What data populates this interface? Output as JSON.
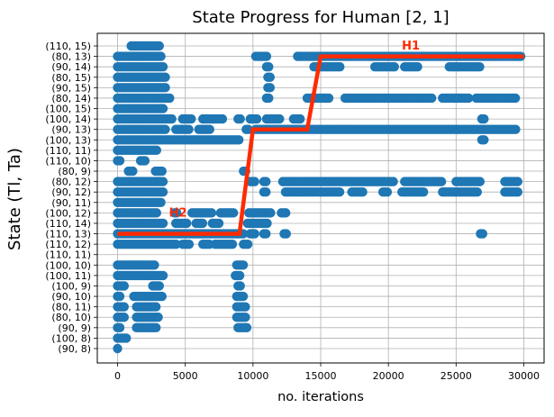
{
  "chart_data": {
    "type": "scatter",
    "title": "State Progress for Human [2, 1]",
    "xlabel": "no. iterations",
    "ylabel": "State (Tl, Ta)",
    "xlim": [
      -1500,
      31500
    ],
    "xticks": [
      0,
      5000,
      10000,
      15000,
      20000,
      25000,
      30000
    ],
    "grid": true,
    "categories": [
      "(90, 8)",
      "(100, 8)",
      "(90, 9)",
      "(80, 10)",
      "(80, 11)",
      "(90, 10)",
      "(100, 9)",
      "(100, 11)",
      "(100, 10)",
      "(110, 11)",
      "(110, 12)",
      "(110, 13)",
      "(110, 14)",
      "(100, 12)",
      "(90, 11)",
      "(90, 12)",
      "(80, 12)",
      "(80, 9)",
      "(110, 10)",
      "(110, 11)",
      "(100, 13)",
      "(90, 13)",
      "(100, 14)",
      "(100, 15)",
      "(80, 14)",
      "(90, 15)",
      "(80, 15)",
      "(90, 14)",
      "(80, 13)",
      "(110, 15)"
    ],
    "scatter_color": "#1f77b4",
    "scatter_segments": [
      {
        "state": "(110, 15)",
        "x": [
          [
            1000,
            3100
          ]
        ]
      },
      {
        "state": "(80, 13)",
        "x": [
          [
            0,
            3300
          ],
          [
            10200,
            11100
          ],
          [
            13300,
            29900
          ]
        ]
      },
      {
        "state": "(90, 14)",
        "x": [
          [
            0,
            3400
          ],
          [
            11000,
            11200
          ],
          [
            14500,
            16500
          ],
          [
            19000,
            20500
          ],
          [
            21200,
            22200
          ],
          [
            24500,
            26800
          ]
        ]
      },
      {
        "state": "(80, 15)",
        "x": [
          [
            0,
            3600
          ],
          [
            11100,
            11300
          ]
        ]
      },
      {
        "state": "(90, 15)",
        "x": [
          [
            0,
            3600
          ],
          [
            11100,
            11300
          ]
        ]
      },
      {
        "state": "(80, 14)",
        "x": [
          [
            0,
            3900
          ],
          [
            11000,
            11300
          ],
          [
            14000,
            15600
          ],
          [
            16800,
            23200
          ],
          [
            24000,
            26000
          ],
          [
            26500,
            29500
          ]
        ]
      },
      {
        "state": "(100, 15)",
        "x": [
          [
            0,
            3500
          ]
        ]
      },
      {
        "state": "(100, 14)",
        "x": [
          [
            0,
            4000
          ],
          [
            4800,
            5500
          ],
          [
            6300,
            7800
          ],
          [
            8900,
            9200
          ],
          [
            9800,
            10300
          ],
          [
            11000,
            12000
          ],
          [
            13000,
            13600
          ],
          [
            26900,
            27100
          ]
        ]
      },
      {
        "state": "(90, 13)",
        "x": [
          [
            0,
            3600
          ],
          [
            4300,
            5400
          ],
          [
            6000,
            6800
          ],
          [
            9500,
            9800
          ],
          [
            10200,
            29500
          ]
        ]
      },
      {
        "state": "(100, 13)",
        "x": [
          [
            0,
            9100
          ],
          [
            26900,
            27100
          ]
        ]
      },
      {
        "state": "(110, 11)",
        "x": [
          [
            0,
            3000
          ]
        ]
      },
      {
        "state": "(110, 10)",
        "x": [
          [
            0,
            300
          ],
          [
            1700,
            2100
          ]
        ]
      },
      {
        "state": "(80, 9)",
        "x": [
          [
            800,
            1200
          ],
          [
            2800,
            3300
          ],
          [
            9300,
            9600
          ]
        ]
      },
      {
        "state": "(80, 12)",
        "x": [
          [
            0,
            3400
          ],
          [
            9800,
            10200
          ],
          [
            10800,
            11100
          ],
          [
            12200,
            20500
          ],
          [
            21200,
            24000
          ],
          [
            25000,
            26800
          ],
          [
            28600,
            29600
          ]
        ]
      },
      {
        "state": "(90, 12)",
        "x": [
          [
            0,
            3400
          ],
          [
            10800,
            11100
          ],
          [
            12400,
            16400
          ],
          [
            17300,
            18100
          ],
          [
            19600,
            20000
          ],
          [
            21000,
            22600
          ],
          [
            24000,
            26700
          ],
          [
            28600,
            29600
          ]
        ]
      },
      {
        "state": "(90, 11)",
        "x": [
          [
            0,
            3200
          ]
        ]
      },
      {
        "state": "(100, 12)",
        "x": [
          [
            0,
            3000
          ],
          [
            4200,
            4500
          ],
          [
            5500,
            7000
          ],
          [
            7600,
            8700
          ],
          [
            9700,
            11400
          ],
          [
            12100,
            12500
          ]
        ]
      },
      {
        "state": "(110, 14)",
        "x": [
          [
            0,
            3500
          ],
          [
            4300,
            5100
          ],
          [
            5800,
            6300
          ],
          [
            7000,
            7600
          ],
          [
            9600,
            11100
          ]
        ]
      },
      {
        "state": "(110, 13)",
        "x": [
          [
            0,
            9400
          ],
          [
            9800,
            10200
          ],
          [
            10800,
            11100
          ],
          [
            12300,
            12600
          ],
          [
            26800,
            27100
          ]
        ]
      },
      {
        "state": "(110, 12)",
        "x": [
          [
            0,
            4400
          ],
          [
            4800,
            5400
          ],
          [
            6300,
            6800
          ],
          [
            7200,
            8600
          ],
          [
            9300,
            9700
          ]
        ]
      },
      {
        "state": "(100, 11)",
        "x": [
          [
            0,
            3400
          ],
          [
            8700,
            9100
          ]
        ]
      },
      {
        "state": "(100, 10)",
        "x": [
          [
            0,
            2800
          ],
          [
            8800,
            9300
          ]
        ]
      },
      {
        "state": "(110, 11) ",
        "x": []
      },
      {
        "state": "(100, 9)",
        "x": [
          [
            0,
            500
          ],
          [
            2600,
            3100
          ],
          [
            8900,
            9200
          ]
        ]
      },
      {
        "state": "(90, 10)",
        "x": [
          [
            0,
            300
          ],
          [
            1200,
            3300
          ],
          [
            8800,
            9300
          ]
        ]
      },
      {
        "state": "(80, 11)",
        "x": [
          [
            0,
            500
          ],
          [
            1400,
            2900
          ],
          [
            8800,
            9500
          ]
        ]
      },
      {
        "state": "(80, 10)",
        "x": [
          [
            0,
            500
          ],
          [
            1400,
            3000
          ],
          [
            8800,
            9500
          ]
        ]
      },
      {
        "state": "(90, 9)",
        "x": [
          [
            0,
            300
          ],
          [
            1400,
            2900
          ],
          [
            8900,
            9600
          ]
        ]
      },
      {
        "state": "(100, 8)",
        "x": [
          [
            0,
            700
          ]
        ]
      },
      {
        "state": "(90, 8)",
        "x": [
          [
            0,
            100
          ]
        ]
      }
    ],
    "line": {
      "color": "#ff2a00",
      "points": [
        {
          "x": 0,
          "y": "(110, 13)"
        },
        {
          "x": 9000,
          "y": "(110, 13)"
        },
        {
          "x": 10000,
          "y": "(90, 13)"
        },
        {
          "x": 14000,
          "y": "(90, 13)"
        },
        {
          "x": 15000,
          "y": "(80, 13)"
        },
        {
          "x": 30000,
          "y": "(80, 13)"
        }
      ]
    },
    "annotations": [
      {
        "text": "H1",
        "x": 21000,
        "y": "(110, 15)",
        "color": "#ff2a00"
      },
      {
        "text": "H2",
        "x": 3800,
        "y": "(100, 12)",
        "color": "#ff2a00"
      }
    ]
  }
}
